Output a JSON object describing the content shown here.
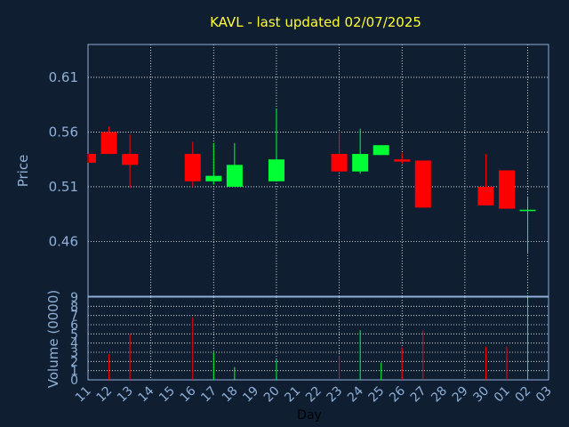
{
  "chart_data": {
    "type": "candlestick",
    "title": "KAVL - last updated 02/07/2025",
    "xlabel": "Day",
    "ylabel": "Price",
    "volume_label": "Volume (0000)",
    "grid": true,
    "x_ticks": [
      "11",
      "12",
      "13",
      "14",
      "15",
      "16",
      "17",
      "18",
      "19",
      "20",
      "21",
      "22",
      "23",
      "24",
      "25",
      "26",
      "27",
      "28",
      "29",
      "30",
      "01",
      "02",
      "03"
    ],
    "price_ticks": [
      "0.46",
      "0.51",
      "0.56",
      "0.61"
    ],
    "price_tick_values": [
      0.46,
      0.51,
      0.56,
      0.61
    ],
    "price_range": [
      0.41,
      0.64
    ],
    "volume_ticks": [
      "0",
      "1",
      "2",
      "3",
      "4",
      "5",
      "6",
      "7",
      "8",
      "9"
    ],
    "volume_range": [
      0,
      9
    ],
    "colors": {
      "up": "#00ff33",
      "down": "#ff0000",
      "grid": "#ffffff",
      "frame": "#8fb0d8",
      "title": "#ffff33",
      "axis_text": "#8fb0d8",
      "background": "#0f1e31"
    },
    "candles": [
      {
        "x": 11,
        "open": 0.54,
        "close": 0.532,
        "high": 0.54,
        "low": 0.532,
        "volume": 0.0
      },
      {
        "x": 12,
        "open": 0.56,
        "close": 0.54,
        "high": 0.565,
        "low": 0.54,
        "volume": 2.8
      },
      {
        "x": 13,
        "open": 0.54,
        "close": 0.53,
        "high": 0.558,
        "low": 0.509,
        "volume": 5.0
      },
      {
        "x": 16,
        "open": 0.54,
        "close": 0.515,
        "high": 0.551,
        "low": 0.51,
        "volume": 6.8
      },
      {
        "x": 17,
        "open": 0.515,
        "close": 0.52,
        "high": 0.55,
        "low": 0.512,
        "volume": 3.0
      },
      {
        "x": 18,
        "open": 0.51,
        "close": 0.53,
        "high": 0.55,
        "low": 0.51,
        "volume": 1.4
      },
      {
        "x": 20,
        "open": 0.515,
        "close": 0.535,
        "high": 0.581,
        "low": 0.515,
        "volume": 2.2
      },
      {
        "x": 23,
        "open": 0.54,
        "close": 0.524,
        "high": 0.561,
        "low": 0.524,
        "volume": 2.6
      },
      {
        "x": 24,
        "open": 0.524,
        "close": 0.54,
        "high": 0.563,
        "low": 0.522,
        "volume": 5.4
      },
      {
        "x": 25,
        "open": 0.539,
        "close": 0.548,
        "high": 0.548,
        "low": 0.539,
        "volume": 1.9
      },
      {
        "x": 26,
        "open": 0.535,
        "close": 0.533,
        "high": 0.541,
        "low": 0.531,
        "volume": 3.5
      },
      {
        "x": 27,
        "open": 0.534,
        "close": 0.491,
        "high": 0.534,
        "low": 0.491,
        "volume": 5.4
      },
      {
        "x": 30,
        "open": 0.51,
        "close": 0.493,
        "high": 0.54,
        "low": 0.493,
        "volume": 3.6
      },
      {
        "x": 31,
        "open": 0.525,
        "close": 0.49,
        "high": 0.525,
        "low": 0.49,
        "volume": 3.6
      },
      {
        "x": 32,
        "open": 0.489,
        "close": 0.489,
        "high": 0.5,
        "low": 0.45,
        "volume": 8.9
      }
    ]
  }
}
